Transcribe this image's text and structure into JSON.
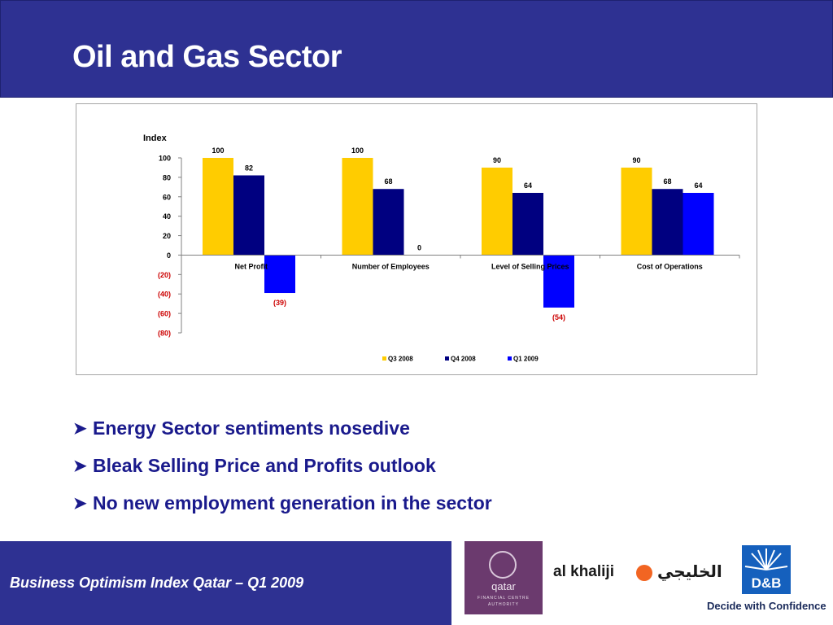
{
  "slide": {
    "title": "Oil and Gas Sector"
  },
  "bullets": [
    "Energy Sector sentiments nosedive",
    "Bleak Selling Price and Profits outlook",
    "No new employment generation in the sector"
  ],
  "footer": {
    "text": "Business Optimism Index Qatar – Q1 2009"
  },
  "logos": {
    "qfca_name": "qatar",
    "qfca_sub_line1": "FINANCIAL CENTRE",
    "qfca_sub_line2": "AUTHORITY",
    "khaliji_latin": "al khaliji",
    "khaliji_arabic": "الخليجي",
    "dnb_name": "D&B",
    "dnb_tagline": "Decide with Confidence"
  },
  "chart_data": {
    "type": "bar",
    "ylabel": "Index",
    "ylim": [
      -80,
      100
    ],
    "yticks": [
      100,
      80,
      60,
      40,
      20,
      0,
      -20,
      -40,
      -60,
      -80
    ],
    "ytick_labels": [
      "100",
      "80",
      "60",
      "40",
      "20",
      "0",
      "(20)",
      "(40)",
      "(60)",
      "(80)"
    ],
    "categories": [
      "Net Profit",
      "Number of Employees",
      "Level of Selling Prices",
      "Cost of Operations"
    ],
    "series": [
      {
        "name": "Q3 2008",
        "color": "#ffcc00",
        "values": [
          100,
          100,
          90,
          90
        ],
        "labels": [
          "100",
          "100",
          "90",
          "90"
        ]
      },
      {
        "name": "Q4 2008",
        "color": "#000080",
        "values": [
          82,
          68,
          64,
          68
        ],
        "labels": [
          "82",
          "68",
          "64",
          "68"
        ]
      },
      {
        "name": "Q1 2009",
        "color": "#0000ff",
        "values": [
          -39,
          0,
          -54,
          64
        ],
        "labels": [
          "(39)",
          "0",
          "(54)",
          "64"
        ]
      }
    ],
    "negative_label_color": "#cc0000",
    "grid": false,
    "legend": "bottom"
  }
}
